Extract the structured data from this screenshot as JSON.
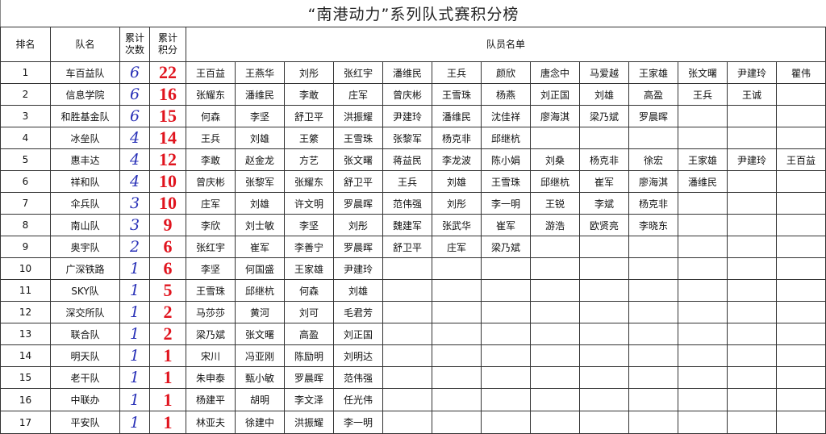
{
  "title": "“南港动力”系列队式赛积分榜",
  "colors": {
    "count": "#2b33b8",
    "points": "#e0141e"
  },
  "headers": {
    "rank": "排名",
    "team": "队名",
    "count_l1": "累计",
    "count_l2": "次数",
    "points_l1": "累计",
    "points_l2": "积分",
    "members": "队员名单"
  },
  "rows": [
    {
      "rank": "1",
      "team": "车百益队",
      "count": "6",
      "points": "22",
      "members": [
        "王百益",
        "王燕华",
        "刘彤",
        "张红宇",
        "潘维民",
        "王兵",
        "颜欣",
        "唐念中",
        "马爱越",
        "王家雄",
        "张文曙",
        "尹建玲",
        "瞿伟"
      ]
    },
    {
      "rank": "2",
      "team": "信息学院",
      "count": "6",
      "points": "16",
      "members": [
        "张耀东",
        "潘维民",
        "李敢",
        "庄军",
        "曾庆彬",
        "王雪珠",
        "杨燕",
        "刘正国",
        "刘雄",
        "高盈",
        "王兵",
        "王诚"
      ]
    },
    {
      "rank": "3",
      "team": "和胜基金队",
      "count": "6",
      "points": "15",
      "members": [
        "何森",
        "李坚",
        "舒卫平",
        "洪振耀",
        "尹建玲",
        "潘维民",
        "沈佳祥",
        "廖海淇",
        "梁乃斌",
        "罗晨晖"
      ]
    },
    {
      "rank": "4",
      "team": "冰垒队",
      "count": "4",
      "points": "14",
      "members": [
        "王兵",
        "刘雄",
        "王綮",
        "王雪珠",
        "张黎军",
        "杨克非",
        "邱继杭"
      ]
    },
    {
      "rank": "5",
      "team": "惠丰达",
      "count": "4",
      "points": "12",
      "members": [
        "李敢",
        "赵金龙",
        "方艺",
        "张文曙",
        "蒋益民",
        "李龙波",
        "陈小娟",
        "刘桑",
        "杨克非",
        "徐宏",
        "王家雄",
        "尹建玲",
        "王百益"
      ]
    },
    {
      "rank": "6",
      "team": "祥和队",
      "count": "4",
      "points": "10",
      "members": [
        "曾庆彬",
        "张黎军",
        "张耀东",
        "舒卫平",
        "王兵",
        "刘雄",
        "王雪珠",
        "邱继杭",
        "崔军",
        "廖海淇",
        "潘维民"
      ]
    },
    {
      "rank": "7",
      "team": "伞兵队",
      "count": "3",
      "points": "10",
      "members": [
        "庄军",
        "刘雄",
        "许文明",
        "罗晨晖",
        "范伟强",
        "刘彤",
        "李一明",
        "王锐",
        "李斌",
        "杨克非"
      ]
    },
    {
      "rank": "8",
      "team": "南山队",
      "count": "3",
      "points": "9",
      "members": [
        "李欣",
        "刘士敏",
        "李坚",
        "刘彤",
        "魏建军",
        "张武华",
        "崔军",
        "游浩",
        "欧贤亮",
        "李晓东"
      ]
    },
    {
      "rank": "9",
      "team": "奥宇队",
      "count": "2",
      "points": "6",
      "members": [
        "张红宇",
        "崔军",
        "李善宁",
        "罗晨晖",
        "舒卫平",
        "庄军",
        "梁乃斌"
      ]
    },
    {
      "rank": "10",
      "team": "广深铁路",
      "count": "1",
      "points": "6",
      "members": [
        "李坚",
        "何国盛",
        "王家雄",
        "尹建玲"
      ]
    },
    {
      "rank": "11",
      "team": "SKY队",
      "count": "1",
      "points": "5",
      "members": [
        "王雪珠",
        "邱继杭",
        "何森",
        "刘雄"
      ]
    },
    {
      "rank": "12",
      "team": "深交所队",
      "count": "1",
      "points": "2",
      "members": [
        "马莎莎",
        "黄河",
        "刘可",
        "毛君芳"
      ]
    },
    {
      "rank": "13",
      "team": "联合队",
      "count": "1",
      "points": "2",
      "members": [
        "梁乃斌",
        "张文曙",
        "高盈",
        "刘正国"
      ]
    },
    {
      "rank": "14",
      "team": "明天队",
      "count": "1",
      "points": "1",
      "members": [
        "宋川",
        "冯亚刚",
        "陈励明",
        "刘明达"
      ]
    },
    {
      "rank": "15",
      "team": "老干队",
      "count": "1",
      "points": "1",
      "members": [
        "朱申泰",
        "甄小敏",
        "罗晨晖",
        "范伟强"
      ]
    },
    {
      "rank": "16",
      "team": "中联办",
      "count": "1",
      "points": "1",
      "members": [
        "杨建平",
        "胡明",
        "李文泽",
        "任光伟"
      ]
    },
    {
      "rank": "17",
      "team": "平安队",
      "count": "1",
      "points": "1",
      "members": [
        "林亚夫",
        "徐建中",
        "洪振耀",
        "李一明"
      ]
    }
  ]
}
